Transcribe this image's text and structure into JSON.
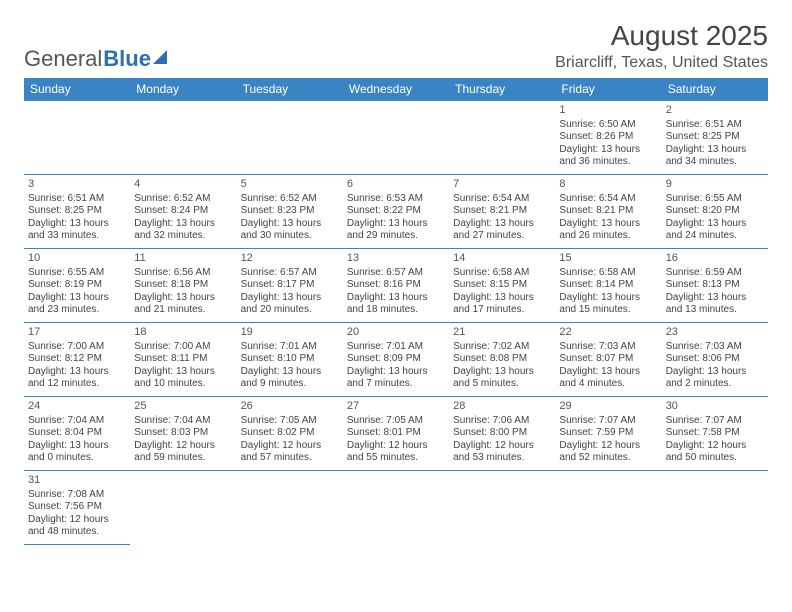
{
  "logo": {
    "text1": "General",
    "text2": "Blue"
  },
  "title": "August 2025",
  "location": "Briarcliff, Texas, United States",
  "colors": {
    "header_bg": "#3b84c4",
    "header_text": "#ffffff",
    "border": "#3b84c4",
    "body_text": "#444444",
    "logo_accent": "#2f6fae"
  },
  "dayNames": [
    "Sunday",
    "Monday",
    "Tuesday",
    "Wednesday",
    "Thursday",
    "Friday",
    "Saturday"
  ],
  "weeks": [
    [
      null,
      null,
      null,
      null,
      null,
      {
        "n": "1",
        "sunrise": "6:50 AM",
        "sunset": "8:26 PM",
        "day_h": "13",
        "day_m": "36"
      },
      {
        "n": "2",
        "sunrise": "6:51 AM",
        "sunset": "8:25 PM",
        "day_h": "13",
        "day_m": "34"
      }
    ],
    [
      {
        "n": "3",
        "sunrise": "6:51 AM",
        "sunset": "8:25 PM",
        "day_h": "13",
        "day_m": "33"
      },
      {
        "n": "4",
        "sunrise": "6:52 AM",
        "sunset": "8:24 PM",
        "day_h": "13",
        "day_m": "32"
      },
      {
        "n": "5",
        "sunrise": "6:52 AM",
        "sunset": "8:23 PM",
        "day_h": "13",
        "day_m": "30"
      },
      {
        "n": "6",
        "sunrise": "6:53 AM",
        "sunset": "8:22 PM",
        "day_h": "13",
        "day_m": "29"
      },
      {
        "n": "7",
        "sunrise": "6:54 AM",
        "sunset": "8:21 PM",
        "day_h": "13",
        "day_m": "27"
      },
      {
        "n": "8",
        "sunrise": "6:54 AM",
        "sunset": "8:21 PM",
        "day_h": "13",
        "day_m": "26"
      },
      {
        "n": "9",
        "sunrise": "6:55 AM",
        "sunset": "8:20 PM",
        "day_h": "13",
        "day_m": "24"
      }
    ],
    [
      {
        "n": "10",
        "sunrise": "6:55 AM",
        "sunset": "8:19 PM",
        "day_h": "13",
        "day_m": "23"
      },
      {
        "n": "11",
        "sunrise": "6:56 AM",
        "sunset": "8:18 PM",
        "day_h": "13",
        "day_m": "21"
      },
      {
        "n": "12",
        "sunrise": "6:57 AM",
        "sunset": "8:17 PM",
        "day_h": "13",
        "day_m": "20"
      },
      {
        "n": "13",
        "sunrise": "6:57 AM",
        "sunset": "8:16 PM",
        "day_h": "13",
        "day_m": "18"
      },
      {
        "n": "14",
        "sunrise": "6:58 AM",
        "sunset": "8:15 PM",
        "day_h": "13",
        "day_m": "17"
      },
      {
        "n": "15",
        "sunrise": "6:58 AM",
        "sunset": "8:14 PM",
        "day_h": "13",
        "day_m": "15"
      },
      {
        "n": "16",
        "sunrise": "6:59 AM",
        "sunset": "8:13 PM",
        "day_h": "13",
        "day_m": "13"
      }
    ],
    [
      {
        "n": "17",
        "sunrise": "7:00 AM",
        "sunset": "8:12 PM",
        "day_h": "13",
        "day_m": "12"
      },
      {
        "n": "18",
        "sunrise": "7:00 AM",
        "sunset": "8:11 PM",
        "day_h": "13",
        "day_m": "10"
      },
      {
        "n": "19",
        "sunrise": "7:01 AM",
        "sunset": "8:10 PM",
        "day_h": "13",
        "day_m": "9"
      },
      {
        "n": "20",
        "sunrise": "7:01 AM",
        "sunset": "8:09 PM",
        "day_h": "13",
        "day_m": "7"
      },
      {
        "n": "21",
        "sunrise": "7:02 AM",
        "sunset": "8:08 PM",
        "day_h": "13",
        "day_m": "5"
      },
      {
        "n": "22",
        "sunrise": "7:03 AM",
        "sunset": "8:07 PM",
        "day_h": "13",
        "day_m": "4"
      },
      {
        "n": "23",
        "sunrise": "7:03 AM",
        "sunset": "8:06 PM",
        "day_h": "13",
        "day_m": "2"
      }
    ],
    [
      {
        "n": "24",
        "sunrise": "7:04 AM",
        "sunset": "8:04 PM",
        "day_h": "13",
        "day_m": "0"
      },
      {
        "n": "25",
        "sunrise": "7:04 AM",
        "sunset": "8:03 PM",
        "day_h": "12",
        "day_m": "59"
      },
      {
        "n": "26",
        "sunrise": "7:05 AM",
        "sunset": "8:02 PM",
        "day_h": "12",
        "day_m": "57"
      },
      {
        "n": "27",
        "sunrise": "7:05 AM",
        "sunset": "8:01 PM",
        "day_h": "12",
        "day_m": "55"
      },
      {
        "n": "28",
        "sunrise": "7:06 AM",
        "sunset": "8:00 PM",
        "day_h": "12",
        "day_m": "53"
      },
      {
        "n": "29",
        "sunrise": "7:07 AM",
        "sunset": "7:59 PM",
        "day_h": "12",
        "day_m": "52"
      },
      {
        "n": "30",
        "sunrise": "7:07 AM",
        "sunset": "7:58 PM",
        "day_h": "12",
        "day_m": "50"
      }
    ],
    [
      {
        "n": "31",
        "sunrise": "7:08 AM",
        "sunset": "7:56 PM",
        "day_h": "12",
        "day_m": "48"
      },
      null,
      null,
      null,
      null,
      null,
      null
    ]
  ],
  "labels": {
    "sunrise": "Sunrise: ",
    "sunset": "Sunset: ",
    "daylight_pre": "Daylight: ",
    "daylight_mid": " hours and ",
    "daylight_post": " minutes."
  }
}
